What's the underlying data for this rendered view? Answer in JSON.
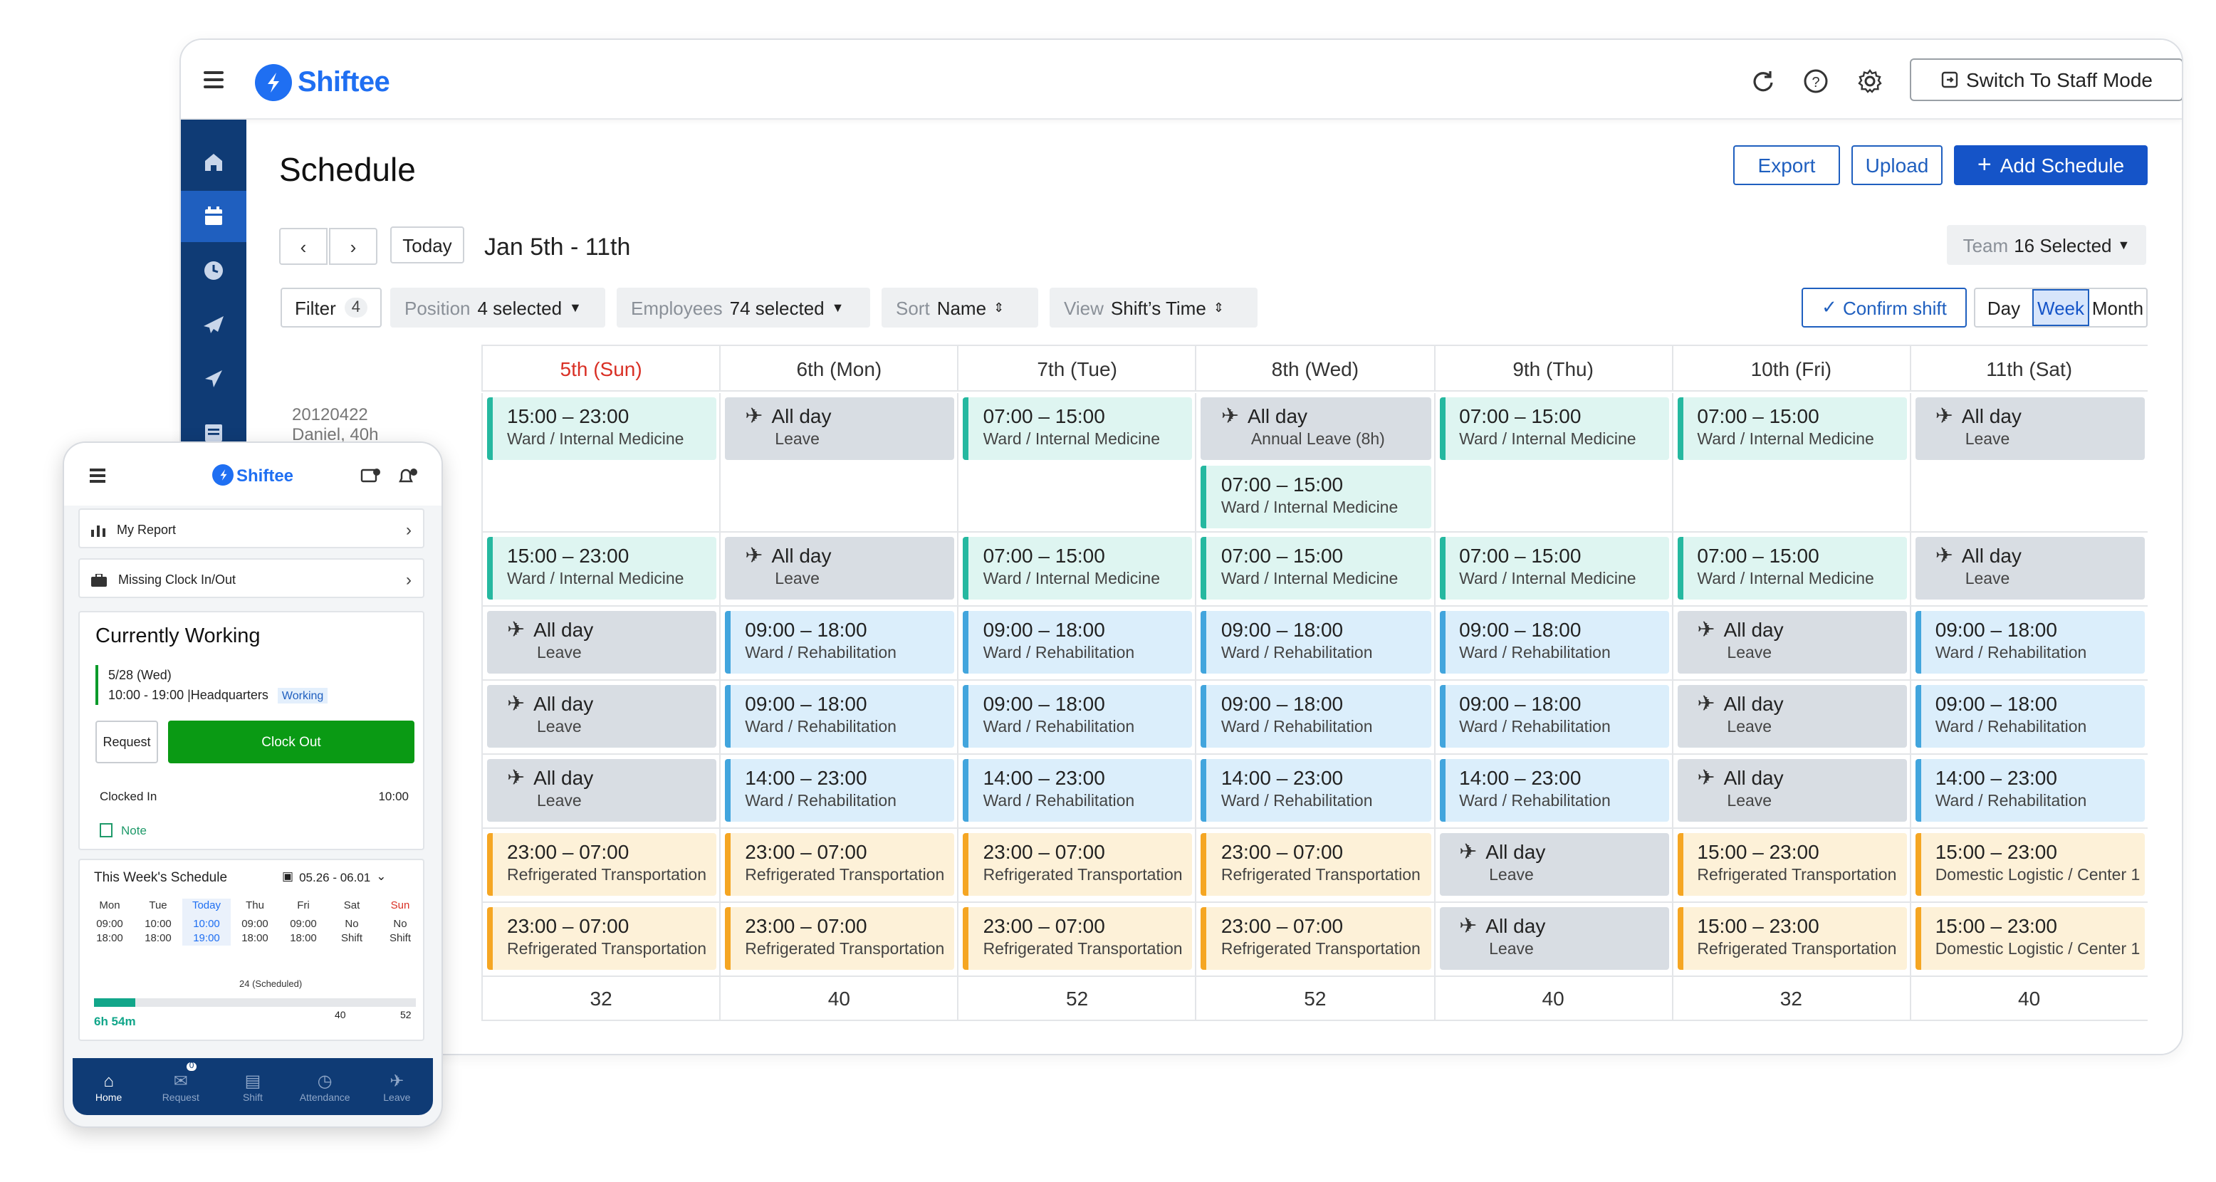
{
  "app": {
    "name": "Shiftee"
  },
  "topbar": {
    "switch_mode_label": "Switch To Staff Mode"
  },
  "sidebar": {
    "items": [
      "home",
      "calendar",
      "clock",
      "leave",
      "send",
      "report"
    ]
  },
  "page": {
    "title": "Schedule"
  },
  "actions": {
    "export": "Export",
    "upload": "Upload",
    "add_schedule": "Add Schedule"
  },
  "nav": {
    "today": "Today",
    "date_range": "Jan 5th - 11th"
  },
  "team": {
    "label": "Team",
    "value": "16 Selected"
  },
  "filters": {
    "filter_label": "Filter",
    "filter_count": "4",
    "position_label": "Position",
    "position_value": "4 selected",
    "employees_label": "Employees",
    "employees_value": "74 selected",
    "sort_label": "Sort",
    "sort_value": "Name",
    "view_label": "View",
    "view_value": "Shift’s Time"
  },
  "confirm_shift": "Confirm shift",
  "view_modes": [
    "Day",
    "Week",
    "Month"
  ],
  "selected_view": "Week",
  "employee": {
    "id": "20120422",
    "name": "Daniel",
    "hours": "40h"
  },
  "days": [
    "5th (Sun)",
    "6th (Mon)",
    "7th (Tue)",
    "8th (Wed)",
    "9th (Thu)",
    "10th (Fri)",
    "11th (Sat)"
  ],
  "rows": [
    [
      [
        {
          "time": "15:00 – 23:00",
          "label": "Ward / Internal Medicine",
          "kind": "green"
        }
      ],
      [
        {
          "time": "All day",
          "label": "Leave",
          "kind": "gray"
        }
      ],
      [
        {
          "time": "07:00 – 15:00",
          "label": "Ward / Internal Medicine",
          "kind": "green"
        }
      ],
      [
        {
          "time": "All day",
          "label": "Annual Leave (8h)",
          "kind": "gray"
        },
        {
          "time": "07:00 – 15:00",
          "label": "Ward / Internal Medicine",
          "kind": "green"
        }
      ],
      [
        {
          "time": "07:00 – 15:00",
          "label": "Ward / Internal Medicine",
          "kind": "green"
        }
      ],
      [
        {
          "time": "07:00 – 15:00",
          "label": "Ward / Internal Medicine",
          "kind": "green"
        }
      ],
      [
        {
          "time": "All day",
          "label": "Leave",
          "kind": "gray"
        }
      ]
    ],
    [
      [
        {
          "time": "15:00 – 23:00",
          "label": "Ward / Internal Medicine",
          "kind": "green"
        }
      ],
      [
        {
          "time": "All day",
          "label": "Leave",
          "kind": "gray"
        }
      ],
      [
        {
          "time": "07:00 – 15:00",
          "label": "Ward / Internal Medicine",
          "kind": "green"
        }
      ],
      [
        {
          "time": "07:00 – 15:00",
          "label": "Ward / Internal Medicine",
          "kind": "green"
        }
      ],
      [
        {
          "time": "07:00 – 15:00",
          "label": "Ward / Internal Medicine",
          "kind": "green"
        }
      ],
      [
        {
          "time": "07:00 – 15:00",
          "label": "Ward / Internal Medicine",
          "kind": "green"
        }
      ],
      [
        {
          "time": "All day",
          "label": "Leave",
          "kind": "gray"
        }
      ]
    ],
    [
      [
        {
          "time": "All day",
          "label": "Leave",
          "kind": "gray"
        }
      ],
      [
        {
          "time": "09:00 – 18:00",
          "label": "Ward / Rehabilitation",
          "kind": "blue"
        }
      ],
      [
        {
          "time": "09:00 – 18:00",
          "label": "Ward / Rehabilitation",
          "kind": "blue"
        }
      ],
      [
        {
          "time": "09:00 – 18:00",
          "label": "Ward / Rehabilitation",
          "kind": "blue"
        }
      ],
      [
        {
          "time": "09:00 – 18:00",
          "label": "Ward / Rehabilitation",
          "kind": "blue"
        }
      ],
      [
        {
          "time": "All day",
          "label": "Leave",
          "kind": "gray"
        }
      ],
      [
        {
          "time": "09:00 – 18:00",
          "label": "Ward / Rehabilitation",
          "kind": "blue"
        }
      ]
    ],
    [
      [
        {
          "time": "All day",
          "label": "Leave",
          "kind": "gray"
        }
      ],
      [
        {
          "time": "09:00 – 18:00",
          "label": "Ward / Rehabilitation",
          "kind": "blue"
        }
      ],
      [
        {
          "time": "09:00 – 18:00",
          "label": "Ward / Rehabilitation",
          "kind": "blue"
        }
      ],
      [
        {
          "time": "09:00 – 18:00",
          "label": "Ward / Rehabilitation",
          "kind": "blue"
        }
      ],
      [
        {
          "time": "09:00 – 18:00",
          "label": "Ward / Rehabilitation",
          "kind": "blue"
        }
      ],
      [
        {
          "time": "All day",
          "label": "Leave",
          "kind": "gray"
        }
      ],
      [
        {
          "time": "09:00 – 18:00",
          "label": "Ward / Rehabilitation",
          "kind": "blue"
        }
      ]
    ],
    [
      [
        {
          "time": "All day",
          "label": "Leave",
          "kind": "gray"
        }
      ],
      [
        {
          "time": "14:00 – 23:00",
          "label": "Ward / Rehabilitation",
          "kind": "blue"
        }
      ],
      [
        {
          "time": "14:00 – 23:00",
          "label": "Ward / Rehabilitation",
          "kind": "blue"
        }
      ],
      [
        {
          "time": "14:00 – 23:00",
          "label": "Ward / Rehabilitation",
          "kind": "blue"
        }
      ],
      [
        {
          "time": "14:00 – 23:00",
          "label": "Ward / Rehabilitation",
          "kind": "blue"
        }
      ],
      [
        {
          "time": "All day",
          "label": "Leave",
          "kind": "gray"
        }
      ],
      [
        {
          "time": "14:00 – 23:00",
          "label": "Ward / Rehabilitation",
          "kind": "blue"
        }
      ]
    ],
    [
      [
        {
          "time": "23:00 – 07:00",
          "label": "Refrigerated Transportation",
          "kind": "orange"
        }
      ],
      [
        {
          "time": "23:00 – 07:00",
          "label": "Refrigerated Transportation",
          "kind": "orange"
        }
      ],
      [
        {
          "time": "23:00 – 07:00",
          "label": "Refrigerated Transportation",
          "kind": "orange"
        }
      ],
      [
        {
          "time": "23:00 – 07:00",
          "label": "Refrigerated Transportation",
          "kind": "orange"
        }
      ],
      [
        {
          "time": "All day",
          "label": "Leave",
          "kind": "gray"
        }
      ],
      [
        {
          "time": "15:00 – 23:00",
          "label": "Refrigerated Transportation",
          "kind": "orange"
        }
      ],
      [
        {
          "time": "15:00 – 23:00",
          "label": "Domestic Logistic / Center 1",
          "kind": "orange"
        }
      ]
    ],
    [
      [
        {
          "time": "23:00 – 07:00",
          "label": "Refrigerated Transportation",
          "kind": "orange"
        }
      ],
      [
        {
          "time": "23:00 – 07:00",
          "label": "Refrigerated Transportation",
          "kind": "orange"
        }
      ],
      [
        {
          "time": "23:00 – 07:00",
          "label": "Refrigerated Transportation",
          "kind": "orange"
        }
      ],
      [
        {
          "time": "23:00 – 07:00",
          "label": "Refrigerated Transportation",
          "kind": "orange"
        }
      ],
      [
        {
          "time": "All day",
          "label": "Leave",
          "kind": "gray"
        }
      ],
      [
        {
          "time": "15:00 – 23:00",
          "label": "Refrigerated Transportation",
          "kind": "orange"
        }
      ],
      [
        {
          "time": "15:00 – 23:00",
          "label": "Domestic Logistic / Center 1",
          "kind": "orange"
        }
      ]
    ]
  ],
  "totals": [
    "32",
    "40",
    "52",
    "52",
    "40",
    "32",
    "40"
  ],
  "colors": {
    "green": "#25b8a0",
    "blue": "#42a5dd",
    "gray": "#d8dde3",
    "orange": "#f5a623",
    "brand": "#1f6ff2",
    "sidebar": "#0f3b75"
  },
  "mobile": {
    "my_report": "My Report",
    "missing_clock": "Missing Clock In/Out",
    "currently_working": "Currently Working",
    "date": "5/28 (Wed)",
    "hours": "10:00 - 19:00",
    "location": "Headquarters",
    "status": "Working",
    "request": "Request",
    "clock_out": "Clock Out",
    "clocked_in_label": "Clocked In",
    "clocked_in_time": "10:00",
    "note": "Note",
    "week_title": "This Week's Schedule",
    "week_range": "05.26 - 06.01",
    "week_days": [
      {
        "day": "Mon",
        "line1": "09:00",
        "line2": "18:00"
      },
      {
        "day": "Tue",
        "line1": "10:00",
        "line2": "18:00"
      },
      {
        "day": "Today",
        "line1": "10:00",
        "line2": "19:00"
      },
      {
        "day": "Thu",
        "line1": "09:00",
        "line2": "18:00"
      },
      {
        "day": "Fri",
        "line1": "09:00",
        "line2": "18:00"
      },
      {
        "day": "Sat",
        "line1": "No",
        "line2": "Shift"
      },
      {
        "day": "Sun",
        "line1": "No",
        "line2": "Shift"
      }
    ],
    "scheduled_label": "24 (Scheduled)",
    "worked": "6h 54m",
    "progress": 0.13,
    "mark_40": "40",
    "mark_52": "52",
    "nav": [
      {
        "label": "Home",
        "icon": "home-icon"
      },
      {
        "label": "Request",
        "icon": "inbox-icon",
        "badge": "0"
      },
      {
        "label": "Shift",
        "icon": "calendar-icon"
      },
      {
        "label": "Attendance",
        "icon": "clock-icon"
      },
      {
        "label": "Leave",
        "icon": "plane-icon"
      }
    ]
  }
}
